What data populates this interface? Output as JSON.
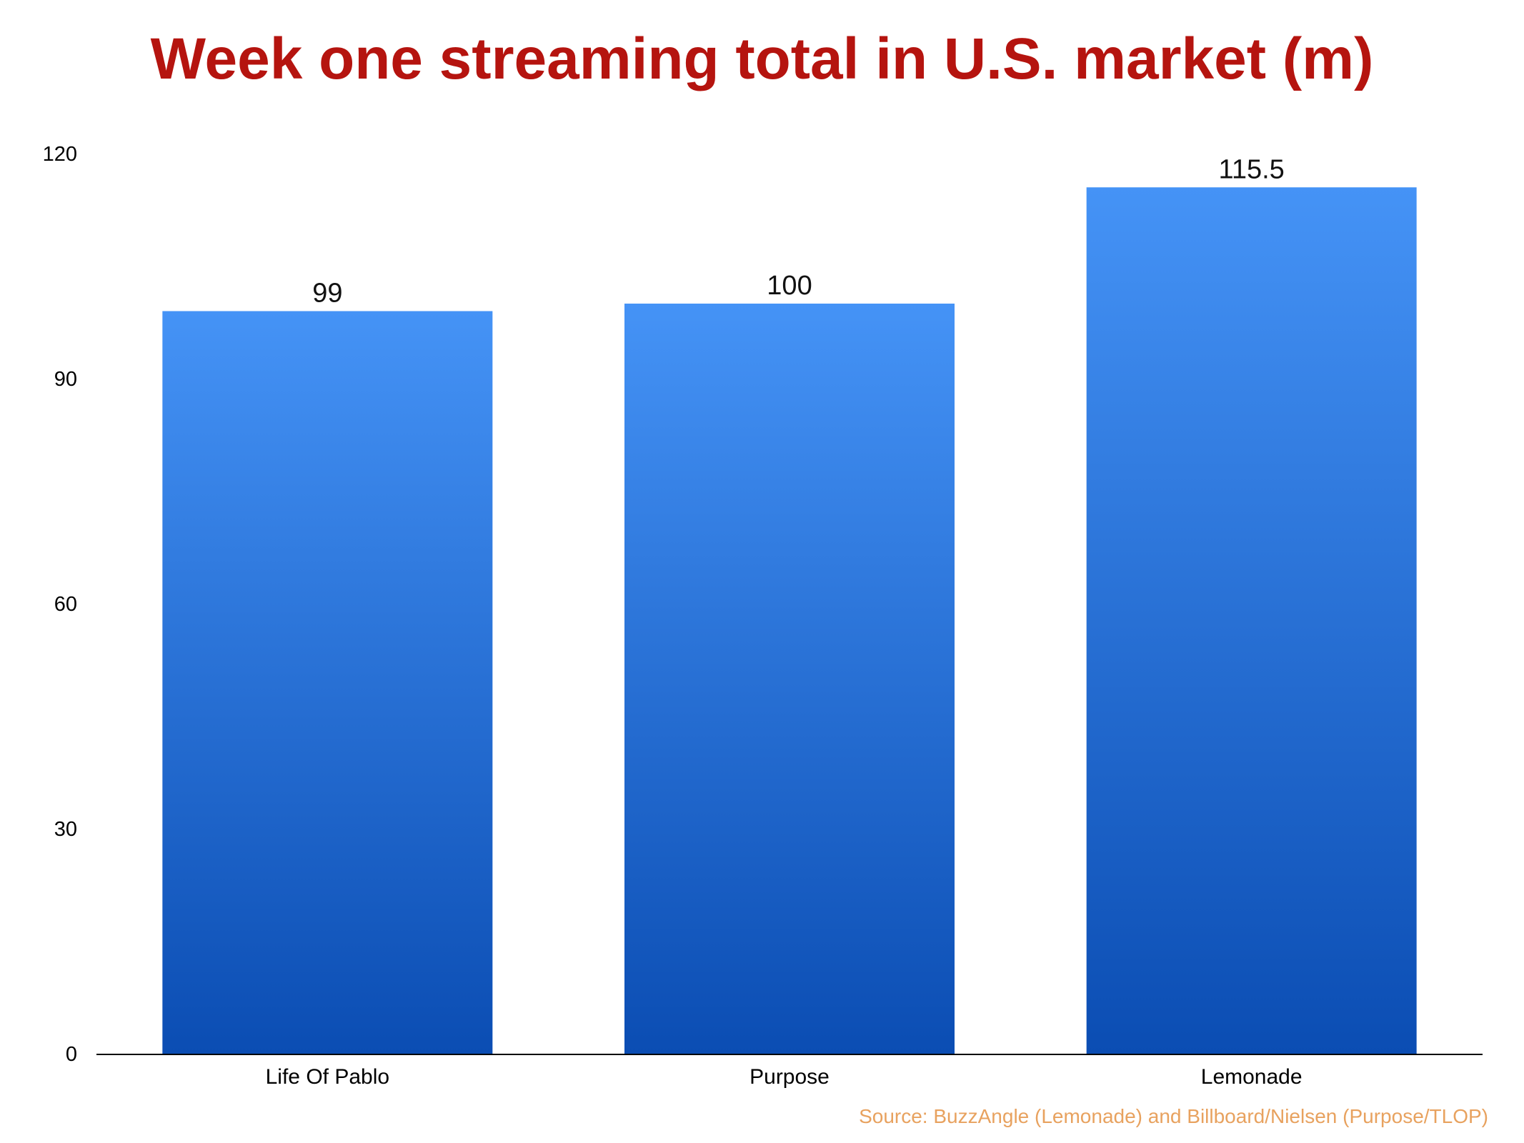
{
  "chart_data": {
    "type": "bar",
    "title": "Week one streaming total in U.S. market (m)",
    "xlabel": "",
    "ylabel": "",
    "categories": [
      "Life Of Pablo",
      "Purpose",
      "Lemonade"
    ],
    "values": [
      99,
      100,
      115.5
    ],
    "value_labels": [
      "99",
      "100",
      "115.5"
    ],
    "ylim": [
      0,
      120
    ],
    "yticks": [
      0,
      30,
      60,
      90,
      120
    ],
    "ytick_labels": [
      "0",
      "30",
      "60",
      "90",
      "120"
    ],
    "grid": false,
    "legend": "none",
    "colors": {
      "bar_top": "#4593f6",
      "bar_bottom": "#0b4db3",
      "title": "#b5140f",
      "source": "#e8a25f",
      "axis": "#000000"
    }
  },
  "source_note": "Source: BuzzAngle (Lemonade) and Billboard/Nielsen (Purpose/TLOP)"
}
